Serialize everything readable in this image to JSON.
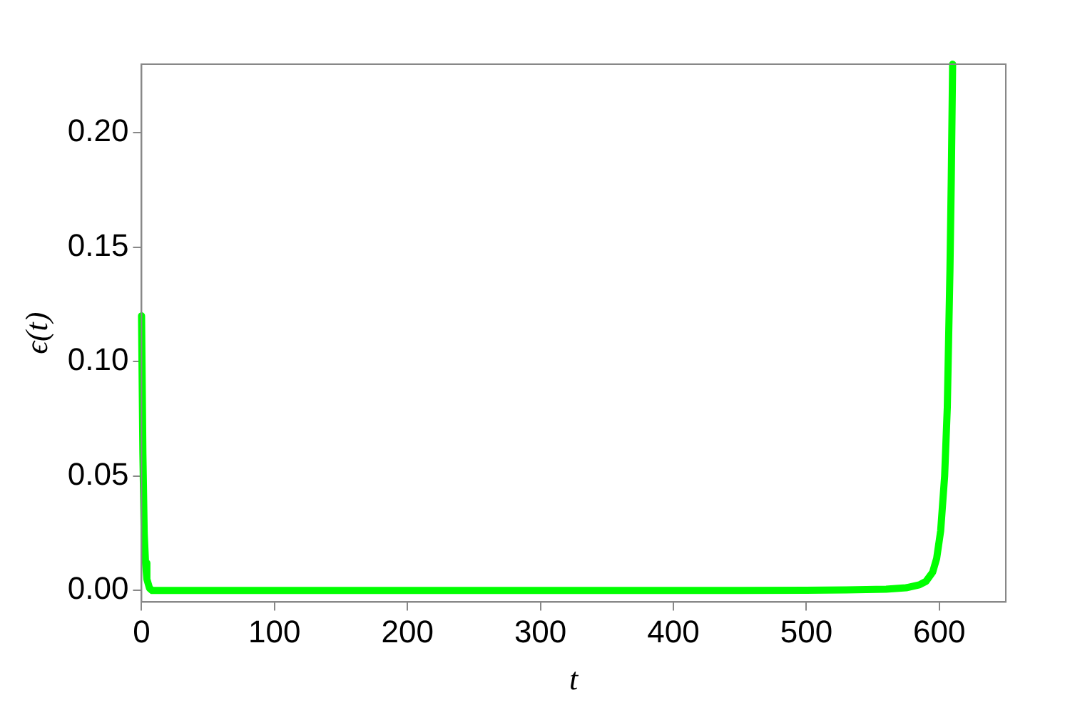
{
  "chart_data": {
    "type": "line",
    "xlabel": "t",
    "ylabel": "ϵ(t)",
    "x": [
      0,
      1,
      2,
      3,
      4,
      6,
      8,
      50,
      100,
      200,
      300,
      400,
      450,
      500,
      530,
      560,
      575,
      585,
      590,
      595,
      598,
      601,
      604,
      606,
      607,
      608,
      609,
      610
    ],
    "series": [
      {
        "color": "#00ff00",
        "values": [
          0.12,
          0.06,
          0.025,
          0.012,
          0.005,
          0.001,
          0,
          0,
          0,
          0,
          0,
          0,
          0,
          0.0001,
          0.0003,
          0.0006,
          0.0012,
          0.0025,
          0.004,
          0.008,
          0.014,
          0.026,
          0.05,
          0.08,
          0.11,
          0.14,
          0.18,
          0.23
        ]
      }
    ],
    "xlim": [
      0,
      650
    ],
    "xticks": [
      0,
      100,
      200,
      300,
      400,
      500,
      600
    ],
    "ylim": [
      -0.005,
      0.23
    ],
    "yticks": [
      {
        "value": 0,
        "label": "0.00"
      },
      {
        "value": 0.05,
        "label": "0.05"
      },
      {
        "value": 0.1,
        "label": "0.10"
      },
      {
        "value": 0.15,
        "label": "0.15"
      },
      {
        "value": 0.2,
        "label": "0.20"
      }
    ],
    "grid": false,
    "legend": false,
    "marker": "none",
    "line_style": "solid"
  }
}
